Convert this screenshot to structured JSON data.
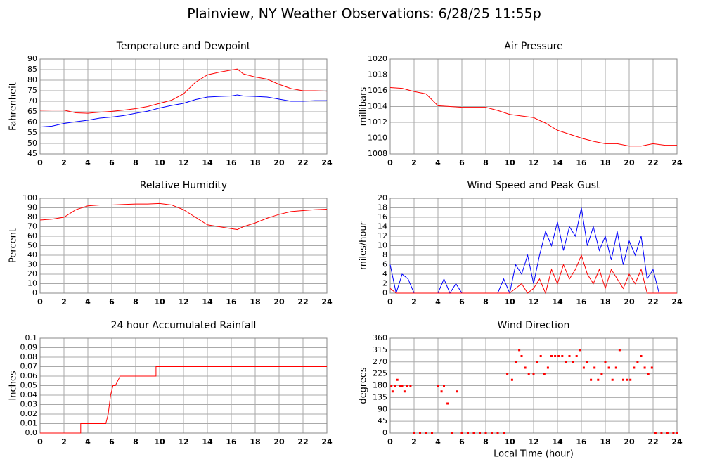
{
  "title": "Plainview, NY Weather Observations: 6/28/25 11:55p",
  "chart_data": [
    {
      "type": "line",
      "title": "Temperature and Dewpoint",
      "ylabel": "Fahrenheit",
      "x": [
        0,
        1,
        2,
        3,
        4,
        5,
        6,
        7,
        8,
        9,
        10,
        11,
        12,
        13,
        14,
        15,
        16,
        16.5,
        17,
        18,
        19,
        20,
        21,
        22,
        23,
        24
      ],
      "series": [
        {
          "color": "#ff0000",
          "values": [
            65.7,
            65.8,
            65.8,
            64.5,
            64.3,
            64.8,
            65.2,
            65.8,
            66.5,
            67.5,
            69,
            70.5,
            73.5,
            79,
            82.5,
            83.8,
            84.8,
            85.3,
            83,
            81.5,
            80.5,
            78,
            76,
            75,
            75,
            74.8
          ]
        },
        {
          "color": "#0000ff",
          "values": [
            57.8,
            58.2,
            59.5,
            60.3,
            61,
            62,
            62.5,
            63.2,
            64.3,
            65.3,
            66.8,
            68,
            69,
            70.8,
            72,
            72.3,
            72.5,
            73,
            72.5,
            72.3,
            72,
            71,
            70,
            70,
            70.3,
            70.3
          ]
        }
      ],
      "xlim": [
        0,
        24
      ],
      "xticks": [
        0,
        2,
        4,
        6,
        8,
        10,
        12,
        14,
        16,
        18,
        20,
        22,
        24
      ],
      "ylim": [
        45,
        90
      ],
      "yticks": [
        45,
        50,
        55,
        60,
        65,
        70,
        75,
        80,
        85,
        90
      ],
      "grid": true
    },
    {
      "type": "line",
      "title": "Air Pressure",
      "ylabel": "millibars",
      "x": [
        0,
        1,
        2,
        3,
        4,
        5,
        6,
        7,
        8,
        9,
        10,
        11,
        12,
        13,
        14,
        15,
        16,
        17,
        18,
        19,
        20,
        21,
        22,
        23,
        24
      ],
      "series": [
        {
          "color": "#ff0000",
          "values": [
            1016.4,
            1016.3,
            1015.9,
            1015.6,
            1014.1,
            1014,
            1013.9,
            1013.9,
            1013.9,
            1013.5,
            1013,
            1012.8,
            1012.6,
            1011.9,
            1011,
            1010.5,
            1010,
            1009.6,
            1009.3,
            1009.3,
            1009,
            1009,
            1009.3,
            1009.1,
            1009.1
          ]
        }
      ],
      "xlim": [
        0,
        24
      ],
      "xticks": [
        0,
        2,
        4,
        6,
        8,
        10,
        12,
        14,
        16,
        18,
        20,
        22,
        24
      ],
      "ylim": [
        1008,
        1020
      ],
      "yticks": [
        1008,
        1010,
        1012,
        1014,
        1016,
        1018,
        1020
      ],
      "grid": true
    },
    {
      "type": "line",
      "title": "Relative Humidity",
      "ylabel": "Percent",
      "x": [
        0,
        1,
        2,
        3,
        4,
        5,
        6,
        7,
        8,
        9,
        10,
        11,
        12,
        13,
        14,
        15,
        16,
        16.5,
        17,
        18,
        19,
        20,
        21,
        22,
        23,
        24
      ],
      "series": [
        {
          "color": "#ff0000",
          "values": [
            77,
            78,
            80,
            88,
            92,
            93,
            93,
            93.5,
            94,
            94,
            94.5,
            93,
            88,
            80,
            72,
            70,
            68,
            67,
            70,
            74,
            79,
            83,
            86,
            87,
            88,
            88.5
          ]
        }
      ],
      "xlim": [
        0,
        24
      ],
      "xticks": [
        0,
        2,
        4,
        6,
        8,
        10,
        12,
        14,
        16,
        18,
        20,
        22,
        24
      ],
      "ylim": [
        0,
        100
      ],
      "yticks": [
        0,
        10,
        20,
        30,
        40,
        50,
        60,
        70,
        80,
        90,
        100
      ],
      "grid": true
    },
    {
      "type": "line",
      "title": "Wind Speed and Peak Gust",
      "ylabel": "miles/hour",
      "x": [
        0,
        0.5,
        1,
        1.5,
        2,
        2.5,
        3,
        3.5,
        4,
        4.5,
        5,
        5.5,
        6,
        6.5,
        7,
        7.5,
        8,
        8.5,
        9,
        9.5,
        10,
        10.5,
        11,
        11.5,
        12,
        12.5,
        13,
        13.5,
        14,
        14.5,
        15,
        15.5,
        16,
        16.5,
        17,
        17.5,
        18,
        18.5,
        19,
        19.5,
        20,
        20.5,
        21,
        21.5,
        22,
        22.5,
        23,
        23.5,
        24
      ],
      "series": [
        {
          "color": "#0000ff",
          "values": [
            6,
            0,
            4,
            3,
            0,
            0,
            0,
            0,
            0,
            3,
            0,
            2,
            0,
            0,
            0,
            0,
            0,
            0,
            0,
            3,
            0,
            6,
            4,
            8,
            2,
            8,
            13,
            10,
            15,
            9,
            14,
            12,
            18,
            10,
            14,
            9,
            12,
            7,
            13,
            6,
            11,
            8,
            12,
            3,
            5,
            0,
            0,
            0,
            0
          ]
        },
        {
          "color": "#ff0000",
          "values": [
            1,
            0,
            0,
            0,
            0,
            0,
            0,
            0,
            0,
            0,
            0,
            0,
            0,
            0,
            0,
            0,
            0,
            0,
            0,
            0,
            0,
            1,
            2,
            0,
            1,
            3,
            0,
            5,
            2,
            6,
            3,
            5,
            8,
            4,
            2,
            5,
            1,
            5,
            3,
            1,
            4,
            2,
            5,
            0,
            0,
            0,
            0,
            0,
            0
          ]
        }
      ],
      "xlim": [
        0,
        24
      ],
      "xticks": [
        0,
        2,
        4,
        6,
        8,
        10,
        12,
        14,
        16,
        18,
        20,
        22,
        24
      ],
      "ylim": [
        0,
        20
      ],
      "yticks": [
        0,
        2,
        4,
        6,
        8,
        10,
        12,
        14,
        16,
        18,
        20
      ],
      "grid": true
    },
    {
      "type": "line",
      "title": "24 hour Accumulated Rainfall",
      "ylabel": "Inches",
      "x": [
        0,
        3.4,
        3.4,
        5.5,
        5.7,
        5.9,
        6.1,
        6.3,
        6.7,
        9.7,
        9.7,
        24
      ],
      "series": [
        {
          "color": "#ff0000",
          "values": [
            0,
            0,
            0.01,
            0.01,
            0.02,
            0.04,
            0.05,
            0.05,
            0.06,
            0.06,
            0.07,
            0.07
          ]
        }
      ],
      "xlim": [
        0,
        24
      ],
      "xticks": [
        0,
        2,
        4,
        6,
        8,
        10,
        12,
        14,
        16,
        18,
        20,
        22,
        24
      ],
      "ylim": [
        0,
        0.1
      ],
      "yticks": [
        {
          "value": 0,
          "label": "0.0"
        },
        0.01,
        0.02,
        0.03,
        0.04,
        0.05,
        0.06,
        0.07,
        0.08,
        0.09,
        0.1
      ],
      "grid": true
    },
    {
      "type": "scatter",
      "title": "Wind Direction",
      "ylabel": "degrees",
      "xlabel": "Local Time (hour)",
      "x": [
        0.1,
        0.2,
        0.4,
        0.6,
        0.8,
        1,
        1.2,
        1.4,
        1.7,
        2,
        2.5,
        3,
        3.5,
        4,
        4.3,
        4.5,
        4.8,
        5.2,
        5.6,
        6,
        6.5,
        7,
        7.5,
        8,
        8.5,
        9,
        9.5,
        9.8,
        10.2,
        10.5,
        10.8,
        11,
        11.3,
        11.6,
        12,
        12.3,
        12.6,
        12.9,
        13.2,
        13.5,
        13.8,
        14.1,
        14.4,
        14.7,
        15,
        15.3,
        15.6,
        15.9,
        16.2,
        16.5,
        16.8,
        17.1,
        17.4,
        17.7,
        18,
        18.3,
        18.6,
        18.9,
        19.2,
        19.5,
        19.8,
        20.1,
        20.4,
        20.7,
        21,
        21.3,
        21.6,
        21.9,
        22.2,
        22.7,
        23.2,
        23.7,
        24
      ],
      "series": [
        {
          "color": "#ff0000",
          "values": [
            180,
            158,
            180,
            202,
            180,
            180,
            158,
            180,
            180,
            0,
            0,
            0,
            0,
            180,
            158,
            180,
            112,
            0,
            158,
            0,
            0,
            0,
            0,
            0,
            0,
            0,
            0,
            225,
            202,
            270,
            315,
            292,
            248,
            225,
            225,
            270,
            292,
            225,
            248,
            292,
            292,
            292,
            292,
            270,
            292,
            270,
            292,
            315,
            248,
            270,
            202,
            248,
            202,
            225,
            270,
            248,
            202,
            248,
            315,
            202,
            202,
            202,
            248,
            270,
            292,
            248,
            225,
            248,
            0,
            0,
            0,
            0,
            0
          ]
        }
      ],
      "xlim": [
        0,
        24
      ],
      "xticks": [
        0,
        2,
        4,
        6,
        8,
        10,
        12,
        14,
        16,
        18,
        20,
        22,
        24
      ],
      "ylim": [
        0,
        360
      ],
      "yticks": [
        0,
        45,
        90,
        135,
        180,
        225,
        270,
        315,
        360
      ],
      "grid": true
    }
  ]
}
